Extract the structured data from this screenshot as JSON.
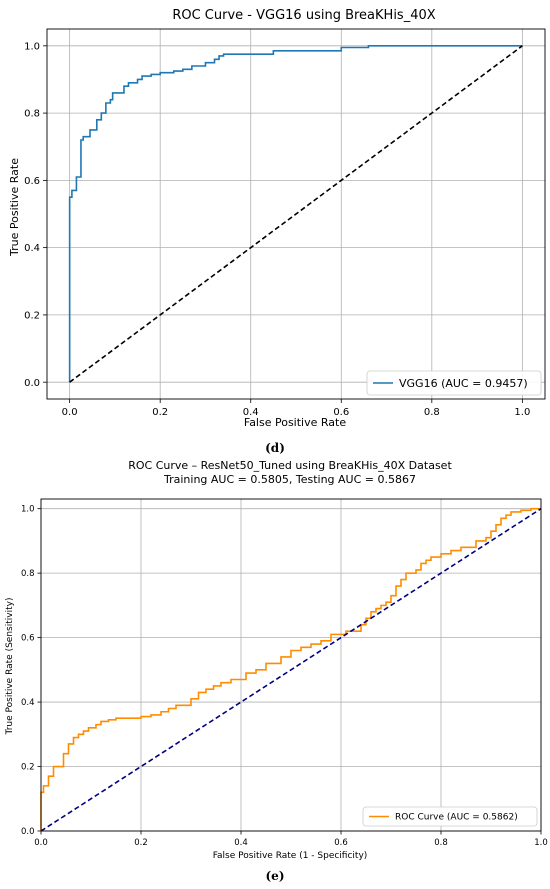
{
  "chart_data": [
    {
      "type": "line",
      "title": "ROC Curve - VGG16 using BreaKHis_40X",
      "xlabel": "False Positive Rate",
      "ylabel": "True Positive Rate",
      "xlim": [
        -0.05,
        1.05
      ],
      "ylim": [
        -0.05,
        1.05
      ],
      "xticks": [
        0.0,
        0.2,
        0.4,
        0.6,
        0.8,
        1.0
      ],
      "yticks": [
        0.0,
        0.2,
        0.4,
        0.6,
        0.8,
        1.0
      ],
      "tick_labels": [
        "0.0",
        "0.2",
        "0.4",
        "0.6",
        "0.8",
        "1.0"
      ],
      "grid": true,
      "legend_position": "bottom-right",
      "series": [
        {
          "name": "VGG16 (AUC = 0.9457)",
          "color": "#1f77b4",
          "x": [
            0.0,
            0.0,
            0.005,
            0.005,
            0.015,
            0.015,
            0.025,
            0.025,
            0.03,
            0.03,
            0.045,
            0.045,
            0.06,
            0.06,
            0.07,
            0.07,
            0.08,
            0.08,
            0.09,
            0.09,
            0.095,
            0.095,
            0.12,
            0.12,
            0.13,
            0.13,
            0.15,
            0.15,
            0.16,
            0.16,
            0.18,
            0.18,
            0.2,
            0.2,
            0.23,
            0.23,
            0.25,
            0.25,
            0.27,
            0.27,
            0.3,
            0.3,
            0.32,
            0.32,
            0.33,
            0.33,
            0.34,
            0.34,
            0.45,
            0.45,
            0.6,
            0.6,
            0.66,
            0.66,
            1.0
          ],
          "y": [
            0.0,
            0.55,
            0.55,
            0.57,
            0.57,
            0.61,
            0.61,
            0.72,
            0.72,
            0.73,
            0.73,
            0.75,
            0.75,
            0.78,
            0.78,
            0.8,
            0.8,
            0.83,
            0.83,
            0.84,
            0.84,
            0.86,
            0.86,
            0.88,
            0.88,
            0.89,
            0.89,
            0.9,
            0.9,
            0.91,
            0.91,
            0.915,
            0.915,
            0.92,
            0.92,
            0.925,
            0.925,
            0.93,
            0.93,
            0.94,
            0.94,
            0.95,
            0.95,
            0.96,
            0.96,
            0.97,
            0.97,
            0.975,
            0.975,
            0.985,
            0.985,
            0.995,
            0.995,
            1.0,
            1.0
          ]
        },
        {
          "name": "",
          "color": "#000000",
          "dashed": true,
          "x": [
            0.0,
            1.0
          ],
          "y": [
            0.0,
            1.0
          ]
        }
      ]
    },
    {
      "type": "line",
      "title": "ROC Curve – ResNet50_Tuned using BreaKHis_40X Dataset",
      "subtitle": "Training AUC = 0.5805, Testing AUC = 0.5867",
      "xlabel": "False Positive Rate (1 - Specificity)",
      "ylabel": "True Positive Rate (Sensitivity)",
      "xlim": [
        0.0,
        1.0
      ],
      "ylim": [
        0.0,
        1.03
      ],
      "xticks": [
        0.0,
        0.2,
        0.4,
        0.6,
        0.8,
        1.0
      ],
      "yticks": [
        0.0,
        0.2,
        0.4,
        0.6,
        0.8,
        1.0
      ],
      "tick_labels": [
        "0.0",
        "0.2",
        "0.4",
        "0.6",
        "0.8",
        "1.0"
      ],
      "grid": true,
      "legend_position": "bottom-right",
      "series": [
        {
          "name": "ROC Curve (AUC = 0.5862)",
          "color": "#ff8c00",
          "x": [
            0.0,
            0.0,
            0.005,
            0.005,
            0.015,
            0.015,
            0.025,
            0.025,
            0.045,
            0.045,
            0.055,
            0.055,
            0.065,
            0.065,
            0.075,
            0.075,
            0.085,
            0.085,
            0.095,
            0.095,
            0.11,
            0.11,
            0.12,
            0.12,
            0.135,
            0.135,
            0.15,
            0.15,
            0.2,
            0.2,
            0.22,
            0.22,
            0.24,
            0.24,
            0.255,
            0.255,
            0.27,
            0.27,
            0.3,
            0.3,
            0.315,
            0.315,
            0.33,
            0.33,
            0.345,
            0.345,
            0.36,
            0.36,
            0.38,
            0.38,
            0.41,
            0.41,
            0.43,
            0.43,
            0.45,
            0.45,
            0.48,
            0.48,
            0.5,
            0.5,
            0.52,
            0.52,
            0.54,
            0.54,
            0.56,
            0.56,
            0.58,
            0.58,
            0.61,
            0.61,
            0.64,
            0.64,
            0.65,
            0.65,
            0.66,
            0.66,
            0.67,
            0.67,
            0.68,
            0.68,
            0.69,
            0.69,
            0.7,
            0.7,
            0.71,
            0.71,
            0.72,
            0.72,
            0.73,
            0.73,
            0.75,
            0.75,
            0.76,
            0.76,
            0.77,
            0.77,
            0.78,
            0.78,
            0.8,
            0.8,
            0.82,
            0.82,
            0.84,
            0.84,
            0.87,
            0.87,
            0.89,
            0.89,
            0.9,
            0.9,
            0.91,
            0.91,
            0.92,
            0.92,
            0.93,
            0.93,
            0.94,
            0.94,
            0.96,
            0.96,
            0.98,
            0.98,
            1.0
          ],
          "y": [
            0.0,
            0.12,
            0.12,
            0.14,
            0.14,
            0.17,
            0.17,
            0.2,
            0.2,
            0.24,
            0.24,
            0.27,
            0.27,
            0.29,
            0.29,
            0.3,
            0.3,
            0.31,
            0.31,
            0.32,
            0.32,
            0.33,
            0.33,
            0.34,
            0.34,
            0.345,
            0.345,
            0.35,
            0.35,
            0.355,
            0.355,
            0.36,
            0.36,
            0.37,
            0.37,
            0.38,
            0.38,
            0.39,
            0.39,
            0.41,
            0.41,
            0.43,
            0.43,
            0.44,
            0.44,
            0.45,
            0.45,
            0.46,
            0.46,
            0.47,
            0.47,
            0.49,
            0.49,
            0.5,
            0.5,
            0.52,
            0.52,
            0.54,
            0.54,
            0.56,
            0.56,
            0.57,
            0.57,
            0.58,
            0.58,
            0.59,
            0.59,
            0.61,
            0.61,
            0.62,
            0.62,
            0.64,
            0.64,
            0.66,
            0.66,
            0.68,
            0.68,
            0.69,
            0.69,
            0.7,
            0.7,
            0.71,
            0.71,
            0.73,
            0.73,
            0.76,
            0.76,
            0.78,
            0.78,
            0.8,
            0.8,
            0.81,
            0.81,
            0.83,
            0.83,
            0.84,
            0.84,
            0.85,
            0.85,
            0.86,
            0.86,
            0.87,
            0.87,
            0.88,
            0.88,
            0.9,
            0.9,
            0.91,
            0.91,
            0.93,
            0.93,
            0.95,
            0.95,
            0.97,
            0.97,
            0.98,
            0.98,
            0.99,
            0.99,
            0.995,
            0.995,
            1.0,
            1.0
          ]
        },
        {
          "name": "",
          "color": "#000080",
          "dashed": true,
          "x": [
            0.0,
            1.0
          ],
          "y": [
            0.0,
            1.0
          ]
        }
      ]
    }
  ],
  "captions": [
    "(d)",
    "(e)"
  ]
}
